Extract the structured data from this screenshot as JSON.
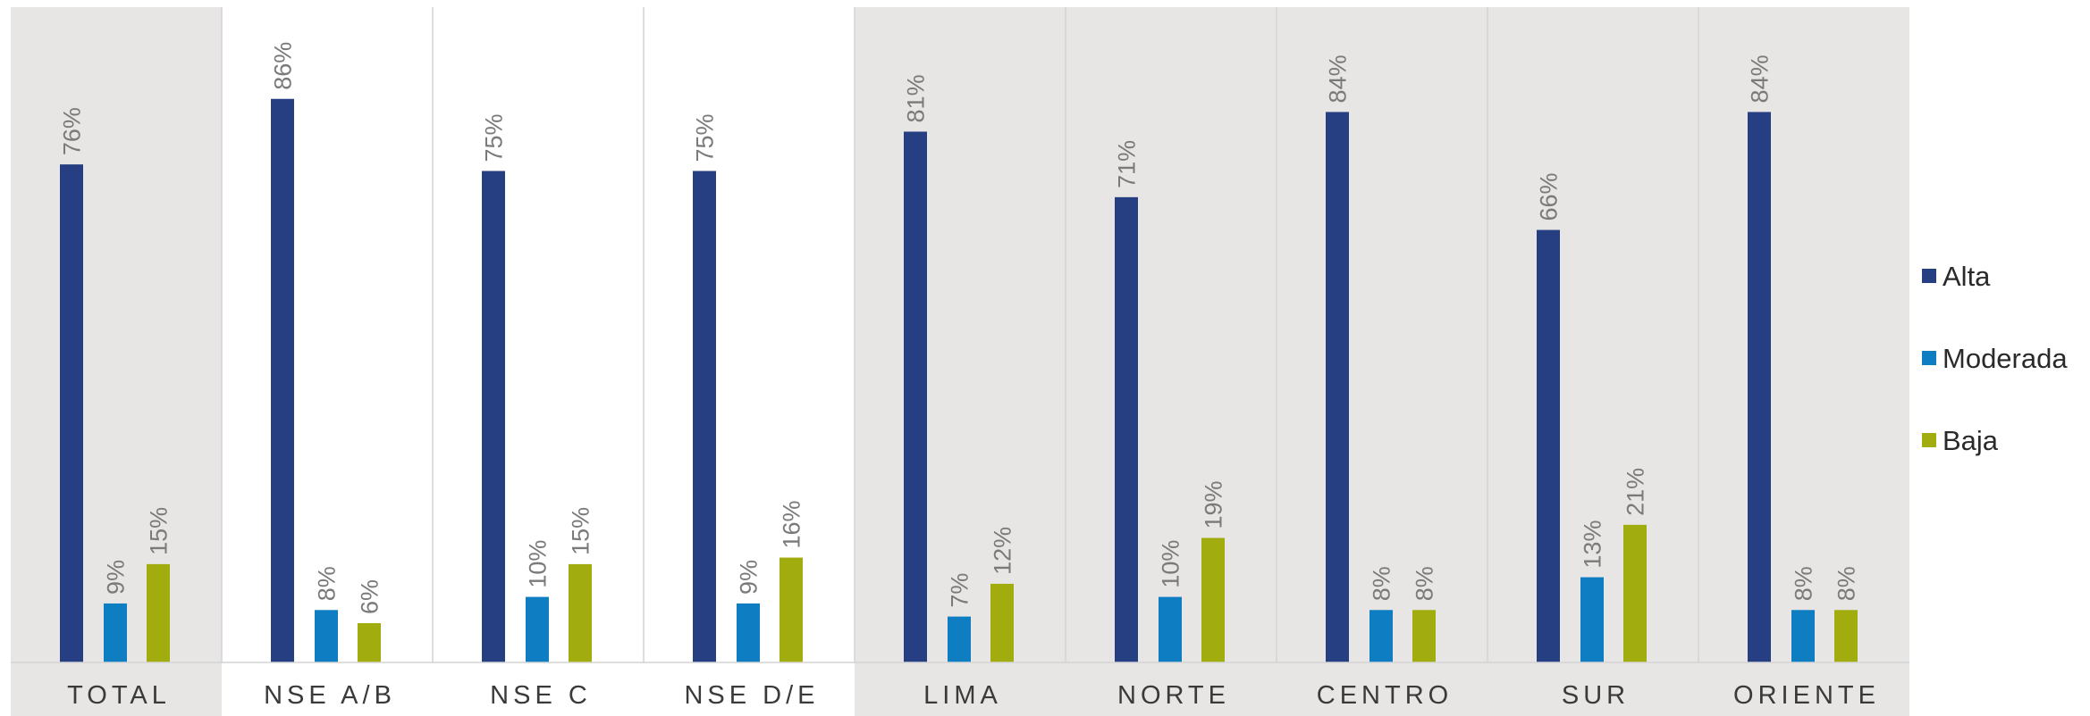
{
  "chart_data": {
    "type": "bar",
    "title": "",
    "xlabel": "",
    "ylabel": "",
    "ylim": [
      0,
      100
    ],
    "value_suffix": "%",
    "legend_position": "right",
    "grid": false,
    "categories": [
      "TOTAL",
      "NSE A/B",
      "NSE C",
      "NSE D/E",
      "LIMA",
      "NORTE",
      "CENTRO",
      "SUR",
      "ORIENTE"
    ],
    "shaded_categories": [
      "TOTAL",
      "LIMA",
      "NORTE",
      "CENTRO",
      "SUR",
      "ORIENTE"
    ],
    "series": [
      {
        "name": "Alta",
        "color": "#253f82",
        "values": [
          76,
          86,
          75,
          75,
          81,
          71,
          84,
          66,
          84
        ]
      },
      {
        "name": "Moderada",
        "color": "#0f7dc2",
        "values": [
          9,
          8,
          10,
          9,
          7,
          10,
          8,
          13,
          8
        ]
      },
      {
        "name": "Baja",
        "color": "#a1ac0f",
        "values": [
          15,
          6,
          15,
          16,
          12,
          19,
          8,
          21,
          8
        ]
      }
    ],
    "background_shade_color": "#e7e6e5"
  }
}
